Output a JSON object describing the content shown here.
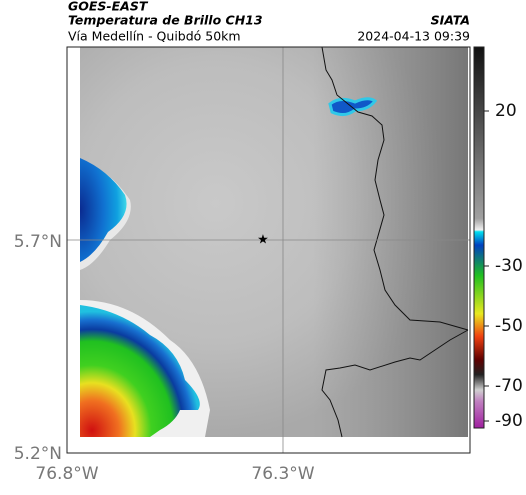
{
  "header": {
    "title": "GOES-EAST",
    "subtitle": "Temperatura de Brillo CH13",
    "region": "Vía Medellín - Quibdó 50km",
    "source": "SIATA",
    "timestamp": "2024-04-13 09:39"
  },
  "map": {
    "lat_ticks": [
      {
        "value": 5.7,
        "label": "5.7°N"
      },
      {
        "value": 5.2,
        "label": "5.2°N"
      }
    ],
    "lon_ticks": [
      {
        "value": -76.8,
        "label": "76.8°W"
      },
      {
        "value": -76.3,
        "label": "76.3°W"
      }
    ]
  },
  "colorbar": {
    "ticks": [
      20,
      -30,
      -50,
      -70,
      -90
    ]
  }
}
